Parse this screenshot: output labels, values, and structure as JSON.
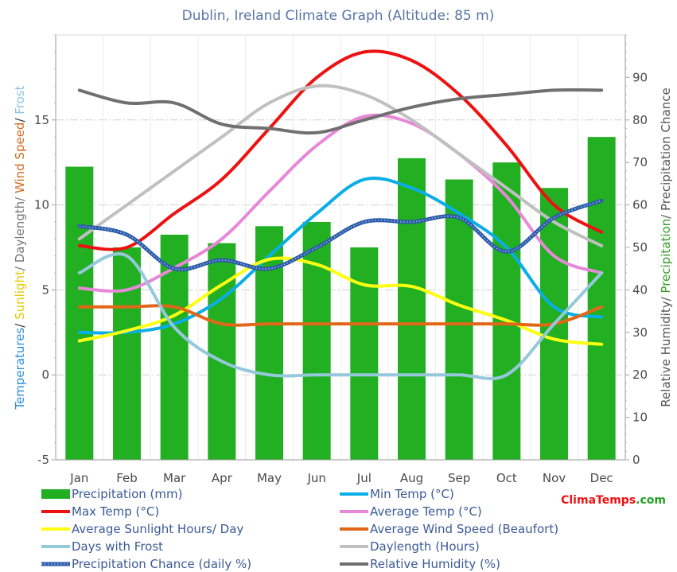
{
  "chart_data": {
    "type": "bar",
    "title": "Dublin, Ireland Climate Graph (Altitude: 85 m)",
    "categories": [
      "Jan",
      "Feb",
      "Mar",
      "Apr",
      "May",
      "Jun",
      "Jul",
      "Aug",
      "Sep",
      "Oct",
      "Nov",
      "Dec"
    ],
    "left_axis": {
      "ylim": [
        -5,
        20
      ],
      "ticks": [
        "-5",
        "0",
        "5",
        "10",
        "15"
      ],
      "label_parts": [
        {
          "text": "Temperatures",
          "color": "#2a8fd6"
        },
        {
          "text": "/ ",
          "color": "#333333"
        },
        {
          "text": "Sunlight",
          "color": "#e6c800"
        },
        {
          "text": "/ Daylength/ ",
          "color": "#777777"
        },
        {
          "text": "Wind Speed",
          "color": "#d2691e"
        },
        {
          "text": "/ ",
          "color": "#333333"
        },
        {
          "text": "Frost",
          "color": "#8fc3e0"
        }
      ]
    },
    "right_axis": {
      "ylim": [
        0,
        100
      ],
      "ticks": [
        "0",
        "10",
        "20",
        "30",
        "40",
        "50",
        "60",
        "70",
        "80",
        "90"
      ],
      "label_parts": [
        {
          "text": "Relative Humidity",
          "color": "#555555"
        },
        {
          "text": "/ ",
          "color": "#555555"
        },
        {
          "text": "Precipitation",
          "color": "#3a9a2a"
        },
        {
          "text": "/ Precipitation Chance",
          "color": "#555555"
        }
      ]
    },
    "grid": true,
    "legend_position": "bottom",
    "series": [
      {
        "name": "Precipitation (mm)",
        "kind": "bar",
        "axis": "right",
        "color": "#22b022",
        "values": [
          69,
          50,
          53,
          51,
          55,
          56,
          50,
          71,
          66,
          70,
          64,
          76
        ]
      },
      {
        "name": "Min Temp (°C)",
        "kind": "line",
        "axis": "left",
        "color": "#0aaee6",
        "values": [
          2.5,
          2.5,
          3.0,
          4.5,
          7.0,
          9.5,
          11.5,
          11.0,
          9.5,
          7.5,
          4.0,
          3.4
        ]
      },
      {
        "name": "Max Temp (°C)",
        "kind": "line",
        "axis": "left",
        "color": "#ee1111",
        "values": [
          7.6,
          7.5,
          9.5,
          11.5,
          14.5,
          17.5,
          19.0,
          18.5,
          16.5,
          13.5,
          10.0,
          8.4
        ]
      },
      {
        "name": "Average Temp (°C)",
        "kind": "line",
        "axis": "left",
        "color": "#e888d8",
        "values": [
          5.1,
          5.0,
          6.3,
          8.0,
          10.8,
          13.5,
          15.2,
          14.8,
          13.0,
          10.5,
          7.0,
          6.0
        ]
      },
      {
        "name": "Average Sunlight Hours/ Day",
        "kind": "line",
        "axis": "left",
        "color": "#ffff11",
        "values": [
          2.0,
          2.6,
          3.5,
          5.3,
          6.8,
          6.5,
          5.3,
          5.2,
          4.1,
          3.2,
          2.1,
          1.8
        ]
      },
      {
        "name": "Average Wind Speed (Beaufort)",
        "kind": "line",
        "axis": "left",
        "color": "#e06818",
        "values": [
          4,
          4,
          4,
          3,
          3,
          3,
          3,
          3,
          3,
          3,
          3,
          4
        ]
      },
      {
        "name": "Days with Frost",
        "kind": "line",
        "axis": "left",
        "color": "#96c8dc",
        "values": [
          6.0,
          7.0,
          2.8,
          0.8,
          0,
          0,
          0,
          0,
          0,
          0,
          3.0,
          6.0
        ]
      },
      {
        "name": "Daylength (Hours)",
        "kind": "line",
        "axis": "left",
        "color": "#c0c0c0",
        "values": [
          8.0,
          10.0,
          12.0,
          14.0,
          16.0,
          17.0,
          16.5,
          15.0,
          13.0,
          11.0,
          9.0,
          7.6
        ]
      },
      {
        "name": "Precipitation Chance (daily %)",
        "kind": "line",
        "axis": "right",
        "color": "#2a5aa8",
        "style": "dotted-line",
        "values": [
          55,
          53,
          45,
          47,
          45,
          50,
          56,
          56,
          57,
          49,
          57,
          61
        ]
      },
      {
        "name": "Relative Humidity (%)",
        "kind": "line",
        "axis": "right",
        "color": "#707070",
        "values": [
          87,
          84,
          84,
          79,
          78,
          77,
          80,
          83,
          85,
          86,
          87,
          87
        ]
      }
    ]
  },
  "branding": {
    "part1": "Clima",
    "part2": "Temps",
    "part3": ".com",
    "color1": "#ee1111",
    "color2": "#ee1111",
    "color3": "#22a022"
  }
}
